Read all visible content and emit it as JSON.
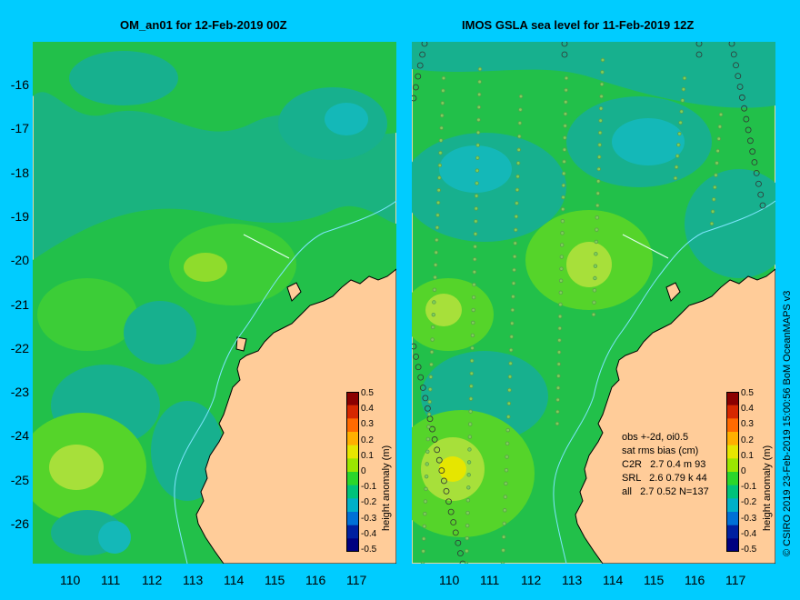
{
  "left_panel": {
    "title": "OM_an01 for 12-Feb-2019 00Z"
  },
  "right_panel": {
    "title": "IMOS GSLA sea level  for 11-Feb-2019 12Z",
    "stats": {
      "line1": "obs +-2d, oi0.5",
      "line2": "sat rms bias (cm)",
      "line3": "C2R   2.7 0.4 m 93",
      "line4": "SRL   2.6 0.79 k 44",
      "line5": "all   2.7 0.52 N=137"
    }
  },
  "axes": {
    "lat_ticks": [
      "-16",
      "-17",
      "-18",
      "-19",
      "-20",
      "-21",
      "-22",
      "-23",
      "-24",
      "-25",
      "-26"
    ],
    "lon_ticks": [
      "110",
      "111",
      "112",
      "113",
      "114",
      "115",
      "116",
      "117"
    ]
  },
  "colorbar": {
    "label": "height anomaly (m)",
    "ticks": [
      "0.5",
      "0.4",
      "0.3",
      "0.2",
      "0.1",
      "0",
      "-0.1",
      "-0.2",
      "-0.3",
      "-0.4",
      "-0.5"
    ],
    "colors": [
      "#8b0000",
      "#d62800",
      "#ff6a00",
      "#ffb000",
      "#e6e600",
      "#9be600",
      "#2bd62b",
      "#00c27a",
      "#00b0c8",
      "#0070d6",
      "#0020a0",
      "#000080"
    ]
  },
  "credit": "© CSIRO 2019   23-Feb-2019 15:00:56 BoM OceanMAPS v3",
  "colors": {
    "background": "#00ccff",
    "land": "#ffcc99",
    "base_green": "#22c04a",
    "teal": "#1ab37f",
    "bright_green": "#55d42a",
    "yellow_green": "#a7e03a",
    "cyan": "#14b8b8"
  }
}
